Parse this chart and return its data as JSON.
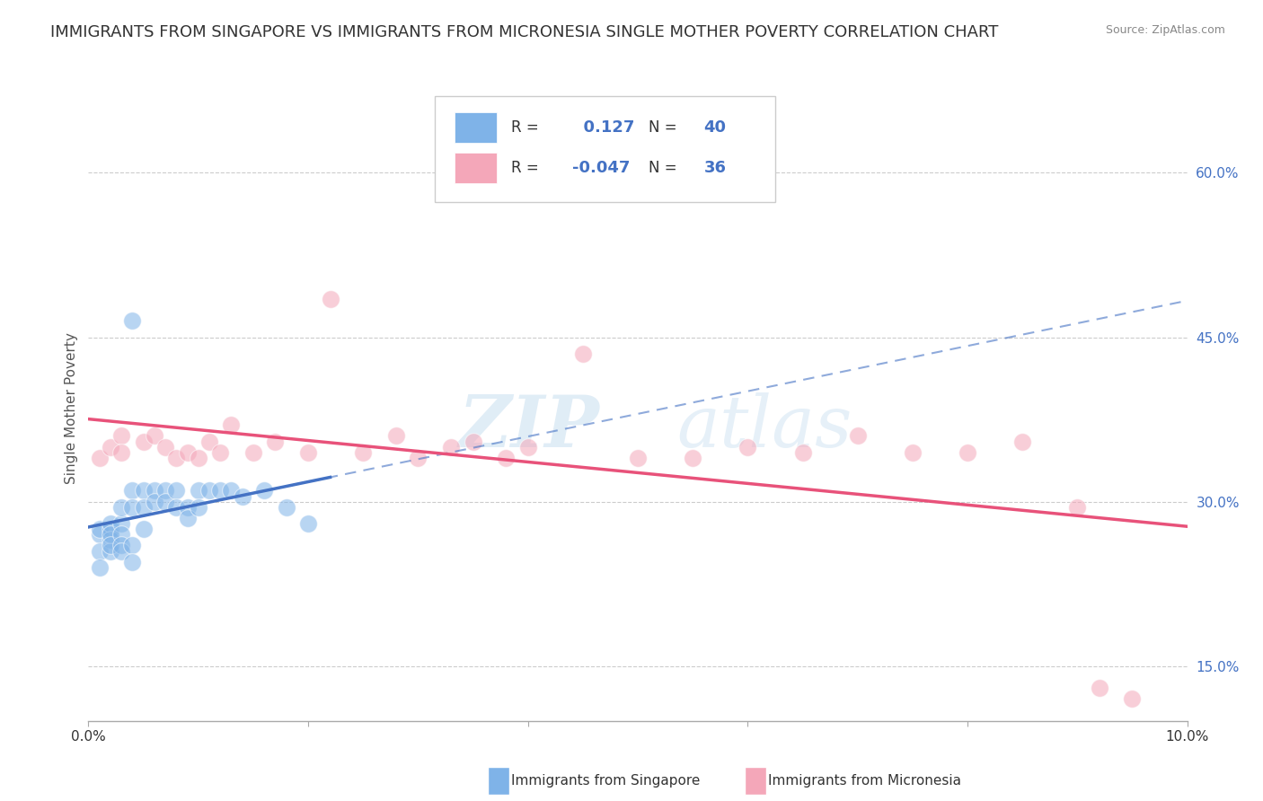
{
  "title": "IMMIGRANTS FROM SINGAPORE VS IMMIGRANTS FROM MICRONESIA SINGLE MOTHER POVERTY CORRELATION CHART",
  "source": "Source: ZipAtlas.com",
  "ylabel": "Single Mother Poverty",
  "legend_label1": "Immigrants from Singapore",
  "legend_label2": "Immigrants from Micronesia",
  "R1": 0.127,
  "N1": 40,
  "R2": -0.047,
  "N2": 36,
  "xlim": [
    0.0,
    0.1
  ],
  "ylim": [
    0.1,
    0.67
  ],
  "right_yticks": [
    0.15,
    0.3,
    0.45,
    0.6
  ],
  "right_yticklabels": [
    "15.0%",
    "30.0%",
    "45.0%",
    "60.0%"
  ],
  "xticks": [
    0.0,
    0.02,
    0.04,
    0.06,
    0.08,
    0.1
  ],
  "xticklabels": [
    "0.0%",
    "",
    "",
    "",
    "",
    "10.0%"
  ],
  "color_singapore": "#7fb3e8",
  "color_micronesia": "#f4a7b9",
  "trendline_singapore": "#4472c4",
  "trendline_micronesia": "#e8527a",
  "background_color": "#ffffff",
  "grid_color": "#cccccc",
  "title_color": "#333333",
  "title_fontsize": 13,
  "axis_label_color": "#555555",
  "right_axis_color": "#4472c4",
  "watermark_zip": "ZIP",
  "watermark_atlas": "atlas",
  "singapore_x": [
    0.001,
    0.001,
    0.001,
    0.001,
    0.002,
    0.002,
    0.002,
    0.002,
    0.002,
    0.002,
    0.003,
    0.003,
    0.003,
    0.003,
    0.003,
    0.004,
    0.004,
    0.004,
    0.004,
    0.005,
    0.005,
    0.005,
    0.006,
    0.006,
    0.007,
    0.007,
    0.008,
    0.008,
    0.009,
    0.009,
    0.01,
    0.01,
    0.011,
    0.012,
    0.013,
    0.014,
    0.016,
    0.018,
    0.02,
    0.004
  ],
  "singapore_y": [
    0.27,
    0.275,
    0.255,
    0.24,
    0.275,
    0.28,
    0.265,
    0.255,
    0.27,
    0.26,
    0.28,
    0.295,
    0.27,
    0.26,
    0.255,
    0.31,
    0.295,
    0.26,
    0.245,
    0.31,
    0.295,
    0.275,
    0.31,
    0.3,
    0.31,
    0.3,
    0.31,
    0.295,
    0.295,
    0.285,
    0.31,
    0.295,
    0.31,
    0.31,
    0.31,
    0.305,
    0.31,
    0.295,
    0.28,
    0.465
  ],
  "micronesia_x": [
    0.001,
    0.002,
    0.003,
    0.003,
    0.005,
    0.006,
    0.007,
    0.008,
    0.009,
    0.01,
    0.011,
    0.012,
    0.013,
    0.015,
    0.017,
    0.02,
    0.022,
    0.025,
    0.028,
    0.03,
    0.033,
    0.035,
    0.038,
    0.04,
    0.045,
    0.05,
    0.055,
    0.06,
    0.065,
    0.07,
    0.075,
    0.08,
    0.085,
    0.09,
    0.092,
    0.095
  ],
  "micronesia_y": [
    0.34,
    0.35,
    0.36,
    0.345,
    0.355,
    0.36,
    0.35,
    0.34,
    0.345,
    0.34,
    0.355,
    0.345,
    0.37,
    0.345,
    0.355,
    0.345,
    0.485,
    0.345,
    0.36,
    0.34,
    0.35,
    0.355,
    0.34,
    0.35,
    0.435,
    0.34,
    0.34,
    0.35,
    0.345,
    0.36,
    0.345,
    0.345,
    0.355,
    0.295,
    0.13,
    0.12
  ]
}
